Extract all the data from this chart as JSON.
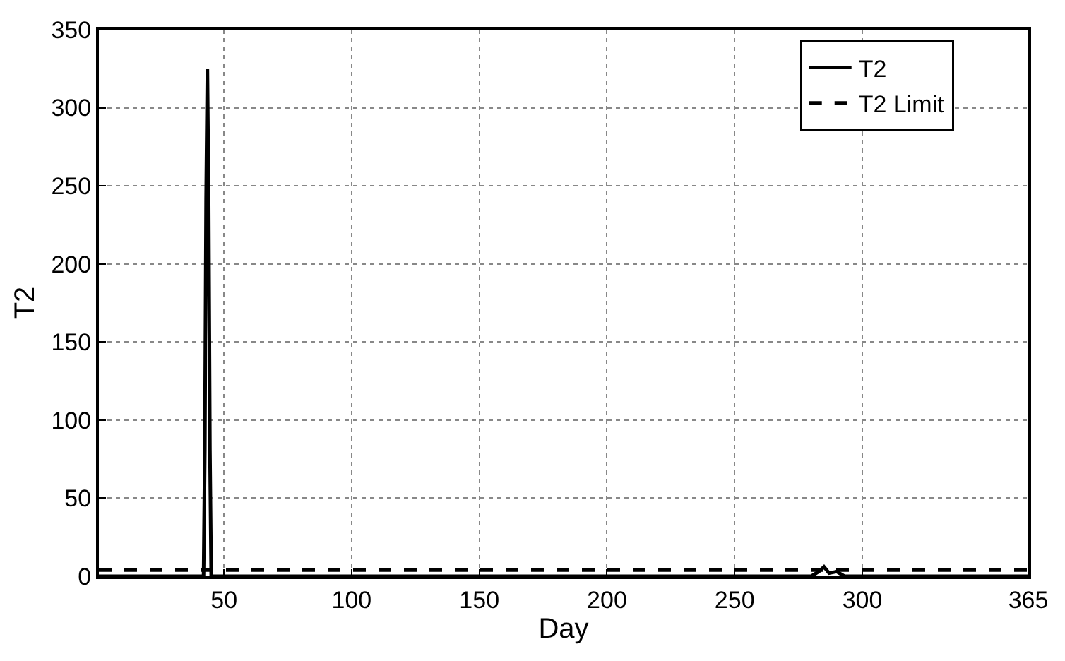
{
  "chart_data": {
    "type": "line",
    "xlabel": "Day",
    "ylabel": "T2",
    "xlim": [
      1,
      365
    ],
    "xticks": [
      50,
      100,
      150,
      200,
      250,
      300,
      365
    ],
    "ylim": [
      0,
      350
    ],
    "yticks": [
      0,
      50,
      100,
      150,
      200,
      250,
      300,
      350
    ],
    "grid": true,
    "legend": "top right",
    "series": [
      {
        "name": "T2",
        "color": "#000000",
        "line_style": "solid",
        "x": [
          1,
          42,
          42.5,
          43,
          43.5,
          44,
          44.5,
          45,
          280,
          283,
          285,
          287,
          290,
          293,
          365
        ],
        "values": [
          0,
          0,
          81,
          242,
          325,
          242,
          81,
          0,
          0,
          3,
          6,
          2,
          3,
          0,
          0
        ]
      },
      {
        "name": "T2 Limit",
        "color": "#000000",
        "line_style": "dashed",
        "x": [
          1,
          365
        ],
        "values": [
          4,
          4
        ]
      }
    ]
  }
}
